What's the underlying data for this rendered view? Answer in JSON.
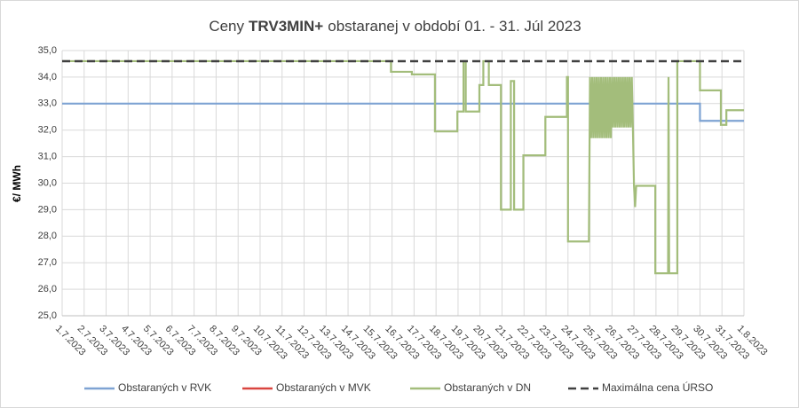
{
  "chart_data": {
    "type": "line",
    "title": [
      "Ceny",
      "TRV3MIN+",
      "obstaranej v období 01. - 31. Júl 2023"
    ],
    "y_label": "€/ MWh",
    "xlim": [
      0,
      31
    ],
    "xticks": [
      {
        "value": 0,
        "label": "1.7.2023"
      },
      {
        "value": 1,
        "label": "2.7.2023"
      },
      {
        "value": 2,
        "label": "3.7.2023"
      },
      {
        "value": 3,
        "label": "4.7.2023"
      },
      {
        "value": 4,
        "label": "5.7.2023"
      },
      {
        "value": 5,
        "label": "6.7.2023"
      },
      {
        "value": 6,
        "label": "7.7.2023"
      },
      {
        "value": 7,
        "label": "8.7.2023"
      },
      {
        "value": 8,
        "label": "9.7.2023"
      },
      {
        "value": 9,
        "label": "10.7.2023"
      },
      {
        "value": 10,
        "label": "11.7.2023"
      },
      {
        "value": 11,
        "label": "12.7.2023"
      },
      {
        "value": 12,
        "label": "13.7.2023"
      },
      {
        "value": 13,
        "label": "14.7.2023"
      },
      {
        "value": 14,
        "label": "15.7.2023"
      },
      {
        "value": 15,
        "label": "16.7.2023"
      },
      {
        "value": 16,
        "label": "17.7.2023"
      },
      {
        "value": 17,
        "label": "18.7.2023"
      },
      {
        "value": 18,
        "label": "19.7.2023"
      },
      {
        "value": 19,
        "label": "20.7.2023"
      },
      {
        "value": 20,
        "label": "21.7.2023"
      },
      {
        "value": 21,
        "label": "22.7.2023"
      },
      {
        "value": 22,
        "label": "23.7.2023"
      },
      {
        "value": 23,
        "label": "24.7.2023"
      },
      {
        "value": 24,
        "label": "25.7.2023"
      },
      {
        "value": 25,
        "label": "26.7.2023"
      },
      {
        "value": 26,
        "label": "27.7.2023"
      },
      {
        "value": 27,
        "label": "28.7.2023"
      },
      {
        "value": 28,
        "label": "29.7.2023"
      },
      {
        "value": 29,
        "label": "30.7.2023"
      },
      {
        "value": 30,
        "label": "31.7.2023"
      },
      {
        "value": 31,
        "label": "1.8.2023"
      }
    ],
    "ylim": [
      25,
      35
    ],
    "yticks": [
      {
        "value": 25,
        "label": "25,0"
      },
      {
        "value": 26,
        "label": "26,0"
      },
      {
        "value": 27,
        "label": "27,0"
      },
      {
        "value": 28,
        "label": "28,0"
      },
      {
        "value": 29,
        "label": "29,0"
      },
      {
        "value": 30,
        "label": "30,0"
      },
      {
        "value": 31,
        "label": "31,0"
      },
      {
        "value": 32,
        "label": "32,0"
      },
      {
        "value": 33,
        "label": "33,0"
      },
      {
        "value": 34,
        "label": "34,0"
      },
      {
        "value": 35,
        "label": "35,0"
      }
    ],
    "grid": true,
    "legend": "bottom",
    "series": [
      {
        "name": "Obstaraných v RVK",
        "color": "#7ea3d3",
        "dash": false,
        "x": [
          0,
          29,
          29,
          31
        ],
        "values": [
          33.0,
          33.0,
          32.35,
          32.35
        ]
      },
      {
        "name": "Obstaraných v MVK",
        "color": "#d9453f",
        "dash": false,
        "x": [],
        "values": []
      },
      {
        "name": "Obstaraných v DN",
        "color": "#a3bd7b",
        "dash": false,
        "x": [
          0,
          14.95,
          14.95,
          15.9,
          15.9,
          16.95,
          16.95,
          17.97,
          17.97,
          18.25,
          18.25,
          18.35,
          18.35,
          18.97,
          18.97,
          19.15,
          19.15,
          19.4,
          19.4,
          19.95,
          19.95,
          20.4,
          20.4,
          20.55,
          20.55,
          20.97,
          20.97,
          21.97,
          21.97,
          22.95,
          22.95,
          23.0,
          23.0,
          23.95,
          24.0,
          24.05,
          24.1,
          24.15,
          24.2,
          24.25,
          24.3,
          24.35,
          24.4,
          24.45,
          24.5,
          24.55,
          24.6,
          24.65,
          24.7,
          24.75,
          24.8,
          24.85,
          24.9,
          24.95,
          25.0,
          25.05,
          25.1,
          25.15,
          25.2,
          25.25,
          25.3,
          25.35,
          25.4,
          25.45,
          25.5,
          25.55,
          25.6,
          25.65,
          25.7,
          25.75,
          25.8,
          25.85,
          25.9,
          25.95,
          26.0,
          26.05,
          26.1,
          26.97,
          26.97,
          27.55,
          27.57,
          27.6,
          27.97,
          27.97,
          29.0,
          29.0,
          29.95,
          29.95,
          30.2,
          30.2,
          31
        ],
        "values": [
          34.6,
          34.6,
          34.2,
          34.2,
          34.1,
          34.1,
          31.95,
          31.95,
          32.7,
          32.7,
          34.6,
          34.6,
          32.7,
          32.7,
          33.7,
          33.7,
          34.6,
          34.6,
          33.7,
          33.7,
          29.0,
          29.0,
          33.85,
          33.85,
          29.0,
          29.0,
          31.05,
          31.05,
          32.5,
          32.5,
          34.0,
          34.0,
          27.8,
          27.8,
          34.0,
          31.7,
          34.0,
          31.7,
          34.0,
          31.7,
          34.0,
          31.7,
          34.0,
          31.7,
          34.0,
          31.7,
          34.0,
          31.7,
          34.0,
          31.7,
          34.0,
          31.7,
          34.0,
          31.7,
          34.0,
          32.1,
          34.0,
          32.1,
          34.0,
          32.1,
          34.0,
          32.1,
          34.0,
          32.1,
          34.0,
          32.1,
          34.0,
          32.1,
          34.0,
          32.1,
          34.0,
          32.1,
          34.0,
          32.1,
          29.9,
          29.1,
          29.9,
          29.9,
          26.6,
          26.6,
          34.0,
          26.6,
          26.6,
          34.6,
          34.6,
          33.5,
          33.5,
          32.2,
          32.2,
          32.75,
          32.75
        ]
      },
      {
        "name": "Maximálna cena ÚRSO",
        "color": "#404040",
        "dash": true,
        "x": [
          0,
          31
        ],
        "values": [
          34.6,
          34.6
        ]
      }
    ]
  }
}
